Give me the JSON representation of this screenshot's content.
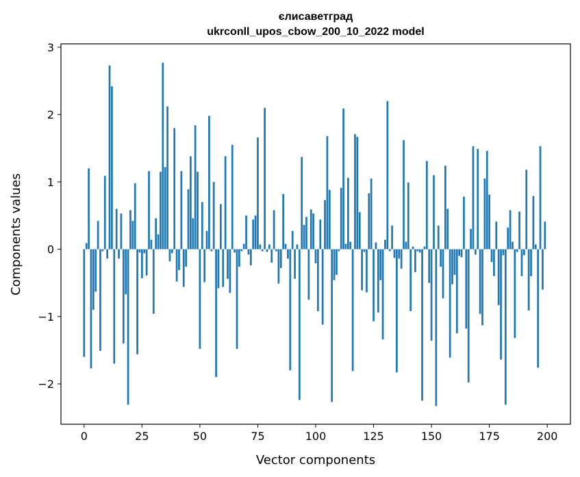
{
  "chart_data": {
    "type": "bar",
    "title": "єлисаветград",
    "subtitle": "ukrconll_upos_cbow_200_10_2022 model",
    "xlabel": "Vector components",
    "ylabel": "Components values",
    "xlim": [
      -10,
      210
    ],
    "ylim": [
      -2.6,
      3.05
    ],
    "x_ticks": [
      0,
      25,
      50,
      75,
      100,
      125,
      150,
      175,
      200
    ],
    "y_ticks": [
      -2,
      -1,
      0,
      1,
      2,
      3
    ],
    "x_tick_labels": [
      "0",
      "25",
      "50",
      "75",
      "100",
      "125",
      "150",
      "175",
      "200"
    ],
    "y_tick_labels": [
      "−2",
      "−1",
      "0",
      "1",
      "2",
      "3"
    ],
    "bar_color": "#1f77b4",
    "grid": false,
    "values": [
      -1.6,
      0.09,
      1.2,
      -1.77,
      -0.9,
      -0.63,
      0.42,
      -1.51,
      -0.03,
      1.09,
      -0.14,
      2.73,
      2.42,
      -1.7,
      0.6,
      -0.14,
      0.53,
      -1.4,
      -0.67,
      -2.31,
      0.58,
      0.42,
      0.98,
      -1.56,
      -0.05,
      -0.43,
      -0.06,
      -0.39,
      1.16,
      0.14,
      -0.96,
      0.46,
      0.22,
      1.15,
      2.77,
      1.22,
      2.12,
      -0.18,
      -0.06,
      1.8,
      -0.48,
      -0.31,
      1.16,
      -0.56,
      -0.26,
      0.89,
      1.38,
      0.46,
      1.84,
      1.15,
      -1.48,
      0.7,
      -0.49,
      0.27,
      1.98,
      -0.03,
      1.0,
      -1.9,
      -0.58,
      0.67,
      -0.56,
      1.38,
      -0.44,
      -0.65,
      1.55,
      -0.05,
      -1.48,
      -0.26,
      -0.03,
      0.08,
      0.5,
      -0.08,
      -0.24,
      0.44,
      0.5,
      1.66,
      0.07,
      -0.03,
      2.1,
      -0.04,
      0.07,
      -0.2,
      0.58,
      -0.03,
      -0.51,
      -0.28,
      0.82,
      0.08,
      -0.14,
      -1.8,
      0.27,
      -0.44,
      0.07,
      -2.24,
      1.37,
      0.36,
      0.48,
      -0.75,
      0.59,
      0.53,
      -0.21,
      -0.92,
      0.44,
      -1.12,
      0.73,
      1.68,
      0.88,
      -2.27,
      -0.46,
      -0.38,
      -0.03,
      0.91,
      2.09,
      0.08,
      1.06,
      0.11,
      -1.81,
      1.71,
      1.67,
      0.55,
      -0.61,
      -0.04,
      -0.64,
      0.83,
      1.05,
      -1.07,
      0.1,
      -0.94,
      -0.46,
      -1.34,
      0.14,
      2.2,
      -0.03,
      0.35,
      -0.13,
      -1.83,
      -0.14,
      -0.29,
      1.62,
      0.11,
      0.99,
      -0.92,
      0.04,
      -0.34,
      -0.03,
      -0.05,
      -2.25,
      0.04,
      1.31,
      -0.5,
      -1.36,
      1.1,
      -2.33,
      0.35,
      -0.26,
      -0.73,
      1.24,
      0.6,
      -1.61,
      -0.52,
      -0.38,
      -1.25,
      -0.1,
      -0.12,
      0.78,
      -1.18,
      -1.98,
      0.3,
      1.53,
      -0.08,
      1.49,
      -0.96,
      -1.13,
      1.05,
      1.46,
      0.81,
      -0.19,
      -0.4,
      0.41,
      -0.83,
      -1.64,
      -0.09,
      -2.31,
      0.32,
      0.58,
      0.11,
      -1.32,
      -0.04,
      0.56,
      -0.4,
      -0.09,
      1.18,
      -0.91,
      -0.4,
      0.79,
      0.07,
      -1.76,
      1.53,
      -0.6,
      0.41
    ]
  }
}
